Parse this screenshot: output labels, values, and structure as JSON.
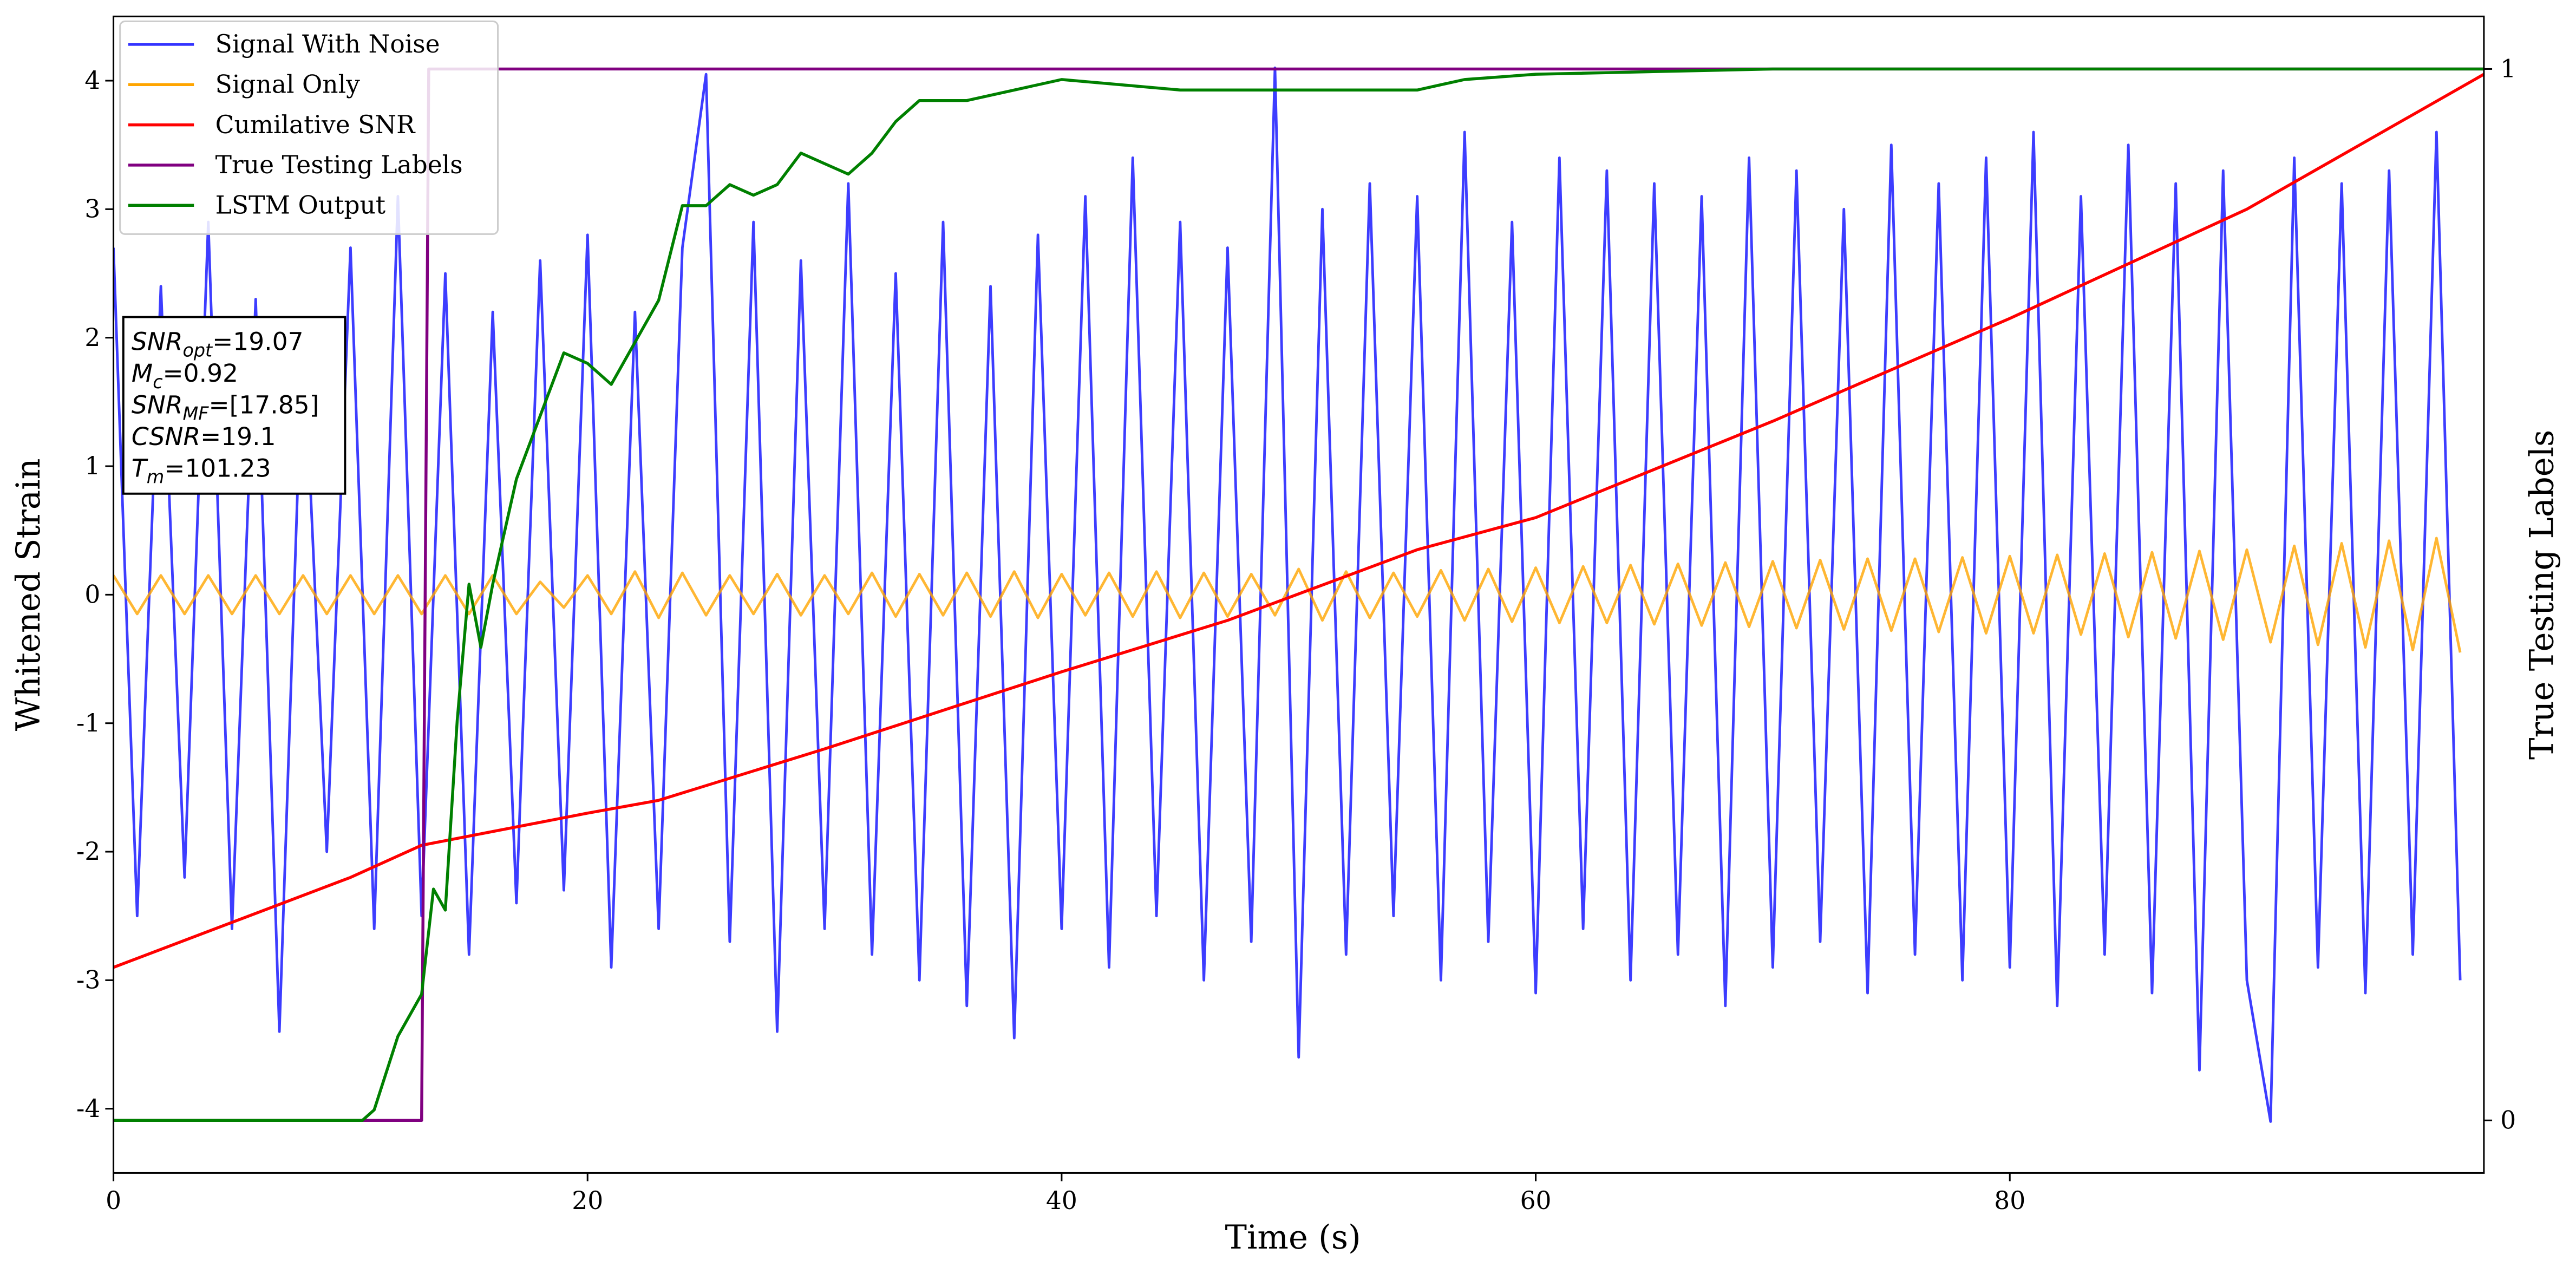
{
  "chart_data": {
    "type": "line",
    "xlabel": "Time (s)",
    "ylabel": "Whitened Strain",
    "y2label": "True Testing Labels",
    "xlim": [
      0,
      100
    ],
    "xticks": [
      0,
      20,
      40,
      60,
      80
    ],
    "ylim": [
      -4.5,
      4.5
    ],
    "yticks": [
      -4,
      -3,
      -2,
      -1,
      0,
      1,
      2,
      3,
      4
    ],
    "y2lim": [
      -0.05,
      1.05
    ],
    "y2ticks": [
      0,
      1
    ],
    "legend": "upper left",
    "series": [
      {
        "name": "Signal With Noise",
        "color": "#3333ff",
        "x": [
          0,
          1,
          2,
          3,
          4,
          5,
          6,
          7,
          8,
          9,
          10,
          11,
          12,
          13,
          14,
          15,
          16,
          17,
          18,
          19,
          20,
          21,
          22,
          23,
          24,
          25,
          26,
          27,
          28,
          29,
          30,
          31,
          32,
          33,
          34,
          35,
          36,
          37,
          38,
          39,
          40,
          41,
          42,
          43,
          44,
          45,
          46,
          47,
          48,
          49,
          50,
          51,
          52,
          53,
          54,
          55,
          56,
          57,
          58,
          59,
          60,
          61,
          62,
          63,
          64,
          65,
          66,
          67,
          68,
          69,
          70,
          71,
          72,
          73,
          74,
          75,
          76,
          77,
          78,
          79,
          80,
          81,
          82,
          83,
          84,
          85,
          86,
          87,
          88,
          89,
          90,
          91,
          92,
          93,
          94,
          95,
          96,
          97,
          98,
          99
        ],
        "values": [
          2.7,
          -2.5,
          2.4,
          -2.2,
          2.9,
          -2.6,
          2.3,
          -3.4,
          2.1,
          -2.0,
          2.7,
          -2.6,
          3.1,
          -2.5,
          2.5,
          -2.8,
          2.2,
          -2.4,
          2.6,
          -2.3,
          2.8,
          -2.9,
          2.2,
          -2.6,
          2.7,
          4.05,
          -2.7,
          2.9,
          -3.4,
          2.6,
          -2.6,
          3.2,
          -2.8,
          2.5,
          -3.0,
          2.9,
          -3.2,
          2.4,
          -3.45,
          2.8,
          -2.6,
          3.1,
          -2.9,
          3.4,
          -2.5,
          2.9,
          -3.0,
          2.7,
          -2.7,
          4.1,
          -3.6,
          3.0,
          -2.8,
          3.2,
          -2.5,
          3.1,
          -3.0,
          3.6,
          -2.7,
          2.9,
          -3.1,
          3.4,
          -2.6,
          3.3,
          -3.0,
          3.2,
          -2.8,
          3.1,
          -3.2,
          3.4,
          -2.9,
          3.3,
          -2.7,
          3.0,
          -3.1,
          3.5,
          -2.8,
          3.2,
          -3.0,
          3.4,
          -2.9,
          3.6,
          -3.2,
          3.1,
          -2.8,
          3.5,
          -3.1,
          3.2,
          -3.7,
          3.3,
          -3.0,
          -4.1,
          3.4,
          -2.9,
          3.2,
          -3.1,
          3.3,
          -2.8,
          3.6,
          -3.0
        ]
      },
      {
        "name": "Signal Only",
        "color": "#ffa500",
        "x": [
          0,
          1,
          2,
          3,
          4,
          5,
          6,
          7,
          8,
          9,
          10,
          11,
          12,
          13,
          14,
          15,
          16,
          17,
          18,
          19,
          20,
          21,
          22,
          23,
          24,
          25,
          26,
          27,
          28,
          29,
          30,
          31,
          32,
          33,
          34,
          35,
          36,
          37,
          38,
          39,
          40,
          41,
          42,
          43,
          44,
          45,
          46,
          47,
          48,
          49,
          50,
          51,
          52,
          53,
          54,
          55,
          56,
          57,
          58,
          59,
          60,
          61,
          62,
          63,
          64,
          65,
          66,
          67,
          68,
          69,
          70,
          71,
          72,
          73,
          74,
          75,
          76,
          77,
          78,
          79,
          80,
          81,
          82,
          83,
          84,
          85,
          86,
          87,
          88,
          89,
          90,
          91,
          92,
          93,
          94,
          95,
          96,
          97,
          98,
          99
        ],
        "values": [
          0.15,
          -0.15,
          0.15,
          -0.15,
          0.15,
          -0.15,
          0.15,
          -0.15,
          0.15,
          -0.15,
          0.15,
          -0.15,
          0.15,
          -0.15,
          0.15,
          -0.15,
          0.15,
          -0.15,
          0.1,
          -0.1,
          0.15,
          -0.15,
          0.18,
          -0.18,
          0.17,
          -0.16,
          0.15,
          -0.15,
          0.16,
          -0.16,
          0.15,
          -0.15,
          0.17,
          -0.17,
          0.16,
          -0.16,
          0.17,
          -0.17,
          0.18,
          -0.18,
          0.16,
          -0.16,
          0.17,
          -0.17,
          0.18,
          -0.18,
          0.17,
          -0.17,
          0.16,
          -0.16,
          0.2,
          -0.2,
          0.18,
          -0.18,
          0.17,
          -0.17,
          0.19,
          -0.2,
          0.2,
          -0.21,
          0.21,
          -0.22,
          0.22,
          -0.22,
          0.23,
          -0.23,
          0.24,
          -0.24,
          0.25,
          -0.25,
          0.26,
          -0.26,
          0.27,
          -0.27,
          0.28,
          -0.28,
          0.28,
          -0.29,
          0.29,
          -0.3,
          0.3,
          -0.3,
          0.31,
          -0.31,
          0.32,
          -0.33,
          0.33,
          -0.34,
          0.34,
          -0.35,
          0.35,
          -0.37,
          0.38,
          -0.39,
          0.4,
          -0.41,
          0.42,
          -0.43,
          0.44,
          -0.45
        ]
      },
      {
        "name": "Cumilative SNR",
        "color": "#ff0000",
        "x": [
          0,
          10,
          13,
          20,
          23,
          30,
          40,
          47,
          55,
          60,
          70,
          80,
          90,
          100
        ],
        "values": [
          -2.9,
          -2.2,
          -1.95,
          -1.7,
          -1.6,
          -1.2,
          -0.6,
          -0.2,
          0.35,
          0.6,
          1.35,
          2.15,
          3.0,
          4.05
        ]
      },
      {
        "name": "True Testing Labels",
        "color": "#800080",
        "axis": "y2",
        "x": [
          0,
          13,
          13.3,
          100
        ],
        "values": [
          0,
          0,
          1,
          1
        ]
      },
      {
        "name": "LSTM Output",
        "color": "#008000",
        "axis": "y2",
        "x": [
          0,
          10.5,
          11,
          12,
          13,
          13.5,
          14,
          14.5,
          15,
          15.5,
          16,
          17,
          18,
          19,
          20,
          21,
          22,
          23,
          24,
          25,
          26,
          27,
          28,
          29,
          30,
          31,
          32,
          33,
          34,
          35,
          36,
          38,
          40,
          45,
          48,
          50,
          55,
          57,
          60,
          70,
          80,
          100
        ],
        "values": [
          0,
          0,
          0.01,
          0.08,
          0.12,
          0.22,
          0.2,
          0.38,
          0.51,
          0.45,
          0.51,
          0.61,
          0.67,
          0.73,
          0.72,
          0.7,
          0.74,
          0.78,
          0.87,
          0.87,
          0.89,
          0.88,
          0.89,
          0.92,
          0.91,
          0.9,
          0.92,
          0.95,
          0.97,
          0.97,
          0.97,
          0.98,
          0.99,
          0.98,
          0.98,
          0.98,
          0.98,
          0.99,
          0.995,
          1,
          1,
          1
        ]
      }
    ],
    "annotation": [
      {
        "main": "SNR",
        "sub": "opt",
        "rest": "=19.07"
      },
      {
        "main": "M",
        "sub": "c",
        "rest": "=0.92"
      },
      {
        "main": "SNR",
        "sub": "MF",
        "rest": "=[17.85]"
      },
      {
        "main": "CSNR",
        "rest": "=19.1"
      },
      {
        "main": "T",
        "sub": "m",
        "rest": "=101.23"
      }
    ]
  }
}
